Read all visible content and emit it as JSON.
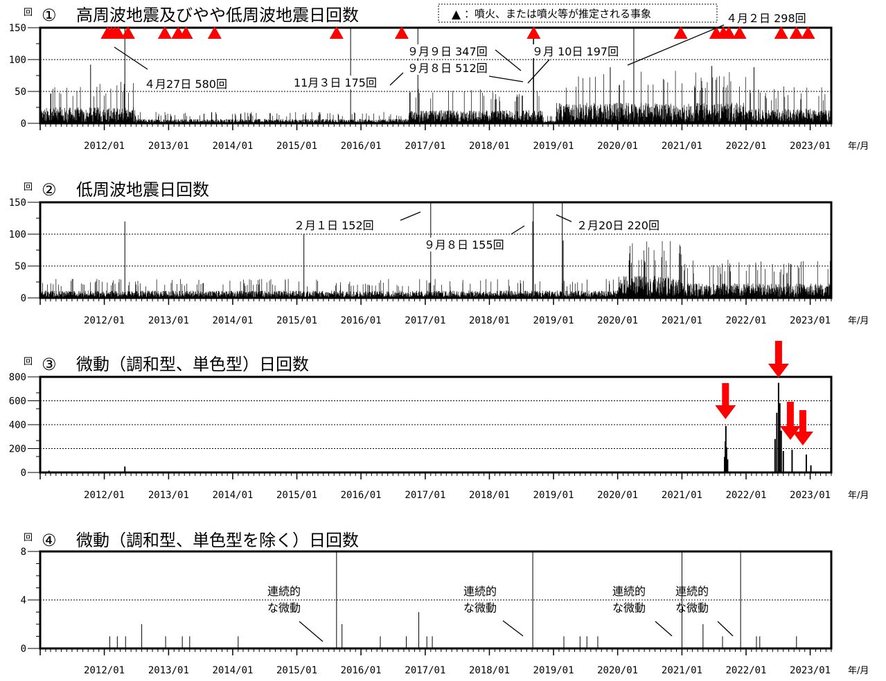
{
  "legend": {
    "marker": "▲",
    "text": "：噴火、または噴火等が推定される事象",
    "color": "#ff0000"
  },
  "x_axis": {
    "start": "2011-01-01",
    "end": "2023-05-01",
    "unit_label": "年/月",
    "tick_labels": [
      "2012/01",
      "2013/01",
      "2014/01",
      "2015/01",
      "2016/01",
      "2017/01",
      "2018/01",
      "2019/01",
      "2020/01",
      "2021/01",
      "2022/01",
      "2023/01"
    ]
  },
  "chart_data": [
    {
      "type": "bar",
      "title": "①",
      "subtitle": "高周波地震及びやや低周波地震日回数",
      "ylabel": "回",
      "ylim": [
        0,
        150
      ],
      "yticks": [
        "0",
        "50",
        "100",
        "150"
      ],
      "grid": true,
      "eruption_marker_dates": [
        "2012-01-20",
        "2012-02-10",
        "2012-03-01",
        "2012-03-20",
        "2012-05-15",
        "2012-12-10",
        "2013-02-25",
        "2013-04-10",
        "2013-09-20",
        "2015-08-15",
        "2016-08-20",
        "2018-09-10",
        "2020-12-25",
        "2021-07-15",
        "2021-08-25",
        "2021-09-25",
        "2021-11-25",
        "2022-07-20",
        "2022-10-15",
        "2022-12-20"
      ],
      "spikes": [
        {
          "date": "2012-04-27",
          "value": 580
        },
        {
          "date": "2015-11-03",
          "value": 175
        },
        {
          "date": "2018-09-08",
          "value": 512
        },
        {
          "date": "2018-09-09",
          "value": 347
        },
        {
          "date": "2018-09-10",
          "value": 197
        },
        {
          "date": "2020-04-02",
          "value": 298
        },
        {
          "date": "2011-10-15",
          "value": 92
        },
        {
          "date": "2016-11-20",
          "value": 150
        },
        {
          "date": "2019-11-20",
          "value": 88
        },
        {
          "date": "2021-06-20",
          "value": 90
        },
        {
          "date": "2022-02-15",
          "value": 88
        }
      ],
      "background_levels": [
        {
          "from": "2011-01-01",
          "to": "2012-06-30",
          "level": 22
        },
        {
          "from": "2012-06-30",
          "to": "2016-09-30",
          "level": 6
        },
        {
          "from": "2016-09-30",
          "to": "2018-10-31",
          "level": 18
        },
        {
          "from": "2018-10-31",
          "to": "2019-01-15",
          "level": 4
        },
        {
          "from": "2019-01-15",
          "to": "2021-12-31",
          "level": 28
        },
        {
          "from": "2021-12-31",
          "to": "2023-05-01",
          "level": 20
        }
      ],
      "annotations": [
        {
          "text": "４月27日 580回",
          "date": "2012-04-27"
        },
        {
          "text": "11月３日 175回",
          "date": "2015-11-03"
        },
        {
          "text": "９月９日 347回",
          "date": "2018-09-09"
        },
        {
          "text": "９月８日 512回",
          "date": "2018-09-08"
        },
        {
          "text": "９月 10日 197回",
          "date": "2018-09-10"
        },
        {
          "text": "４月２日 298回",
          "date": "2020-04-02"
        }
      ]
    },
    {
      "type": "bar",
      "title": "②",
      "subtitle": "低周波地震日回数",
      "ylabel": "回",
      "ylim": [
        0,
        150
      ],
      "yticks": [
        "0",
        "50",
        "100",
        "150"
      ],
      "grid": true,
      "spikes": [
        {
          "date": "2017-02-01",
          "value": 152
        },
        {
          "date": "2018-09-08",
          "value": 155
        },
        {
          "date": "2019-02-20",
          "value": 220
        },
        {
          "date": "2012-04-27",
          "value": 120
        },
        {
          "date": "2015-02-10",
          "value": 100
        },
        {
          "date": "2018-09-05",
          "value": 120
        },
        {
          "date": "2019-02-25",
          "value": 90
        }
      ],
      "background_levels": [
        {
          "from": "2011-01-01",
          "to": "2019-12-31",
          "level": 10
        },
        {
          "from": "2019-12-31",
          "to": "2020-12-31",
          "level": 30
        },
        {
          "from": "2020-12-31",
          "to": "2023-05-01",
          "level": 20
        }
      ],
      "annotations": [
        {
          "text": "２月１日 152回",
          "date": "2017-02-01"
        },
        {
          "text": "９月８日 155回",
          "date": "2018-09-08"
        },
        {
          "text": "２月20日 220回",
          "date": "2019-02-20"
        }
      ]
    },
    {
      "type": "bar",
      "title": "③",
      "subtitle": "微動（調和型、単色型）日回数",
      "ylabel": "回",
      "ylim": [
        0,
        800
      ],
      "yticks": [
        "0",
        "200",
        "400",
        "600",
        "800"
      ],
      "grid": true,
      "spikes": [
        {
          "date": "2021-09-01",
          "value": 130
        },
        {
          "date": "2021-09-05",
          "value": 260
        },
        {
          "date": "2021-09-08",
          "value": 390
        },
        {
          "date": "2021-09-12",
          "value": 210
        },
        {
          "date": "2021-09-18",
          "value": 110
        },
        {
          "date": "2022-06-15",
          "value": 280
        },
        {
          "date": "2022-06-25",
          "value": 500
        },
        {
          "date": "2022-07-05",
          "value": 750
        },
        {
          "date": "2022-07-12",
          "value": 580
        },
        {
          "date": "2022-07-20",
          "value": 350
        },
        {
          "date": "2022-08-01",
          "value": 180
        },
        {
          "date": "2022-09-20",
          "value": 190
        },
        {
          "date": "2022-12-10",
          "value": 150
        },
        {
          "date": "2023-01-05",
          "value": 60
        },
        {
          "date": "2012-04-27",
          "value": 50
        },
        {
          "date": "2011-02-20",
          "value": 15
        }
      ],
      "arrow_dates": [
        "2021-09-06",
        "2022-07-05",
        "2022-09-10",
        "2022-11-20"
      ],
      "arrow_color": "#ff0000"
    },
    {
      "type": "bar",
      "title": "④",
      "subtitle": "微動（調和型、単色型を除く）日回数",
      "ylabel": "回",
      "ylim": [
        0,
        8
      ],
      "yticks": [
        "0",
        "4",
        "8"
      ],
      "grid": true,
      "spikes": [
        {
          "date": "2012-02-01",
          "value": 1
        },
        {
          "date": "2012-03-15",
          "value": 1
        },
        {
          "date": "2012-05-01",
          "value": 1
        },
        {
          "date": "2012-08-01",
          "value": 2
        },
        {
          "date": "2012-12-15",
          "value": 1
        },
        {
          "date": "2013-03-20",
          "value": 1
        },
        {
          "date": "2013-05-01",
          "value": 1
        },
        {
          "date": "2014-02-01",
          "value": 1
        },
        {
          "date": "2015-08-15",
          "value": 8
        },
        {
          "date": "2015-09-15",
          "value": 2
        },
        {
          "date": "2016-04-20",
          "value": 1
        },
        {
          "date": "2016-09-15",
          "value": 1
        },
        {
          "date": "2016-11-25",
          "value": 3
        },
        {
          "date": "2017-01-10",
          "value": 1
        },
        {
          "date": "2017-02-10",
          "value": 1
        },
        {
          "date": "2018-09-05",
          "value": 8
        },
        {
          "date": "2019-03-01",
          "value": 1
        },
        {
          "date": "2019-06-01",
          "value": 1
        },
        {
          "date": "2019-07-10",
          "value": 1
        },
        {
          "date": "2019-09-10",
          "value": 1
        },
        {
          "date": "2021-01-01",
          "value": 8
        },
        {
          "date": "2021-05-01",
          "value": 2
        },
        {
          "date": "2021-08-20",
          "value": 1
        },
        {
          "date": "2021-12-01",
          "value": 8
        },
        {
          "date": "2022-03-01",
          "value": 1
        },
        {
          "date": "2022-03-20",
          "value": 1
        },
        {
          "date": "2022-10-15",
          "value": 1
        }
      ],
      "annotations": [
        {
          "line1": "連続的",
          "line2": "な微動",
          "date": "2015-08-15"
        },
        {
          "line1": "連続的",
          "line2": "な微動",
          "date": "2018-09-05"
        },
        {
          "line1": "連続的",
          "line2": "な微動",
          "date": "2021-01-01"
        },
        {
          "line1": "連続的",
          "line2": "な微動",
          "date": "2021-12-01"
        }
      ]
    }
  ]
}
